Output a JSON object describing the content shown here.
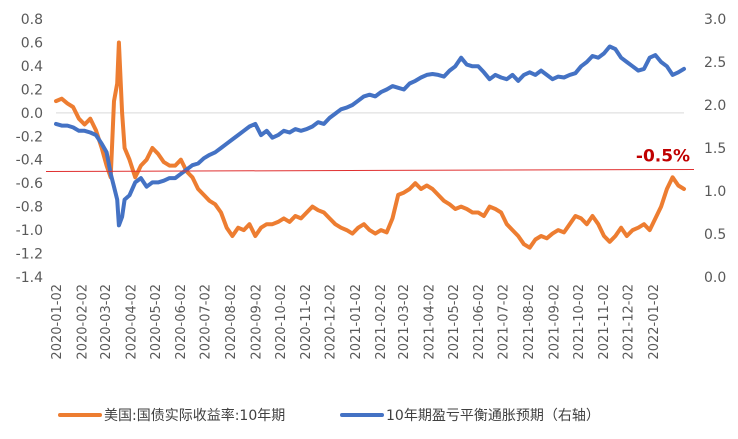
{
  "chart_data": {
    "type": "line",
    "title": "",
    "left_axis": {
      "ylim": [
        -1.4,
        0.8
      ],
      "ticks": [
        "0.8",
        "0.6",
        "0.4",
        "0.2",
        "0.0",
        "-0.2",
        "-0.4",
        "-0.6",
        "-0.8",
        "-1.0",
        "-1.2",
        "-1.4"
      ]
    },
    "right_axis": {
      "ylim": [
        0.0,
        3.0
      ],
      "ticks": [
        "3.0",
        "2.5",
        "2.0",
        "1.5",
        "1.0",
        "0.5",
        "0.0"
      ]
    },
    "x_tick_labels": [
      "2020-01-02",
      "2020-02-02",
      "2020-03-02",
      "2020-04-02",
      "2020-05-02",
      "2020-06-02",
      "2020-07-02",
      "2020-08-02",
      "2020-09-02",
      "2020-10-02",
      "2020-11-02",
      "2020-12-02",
      "2021-01-02",
      "2021-02-02",
      "2021-03-02",
      "2021-04-02",
      "2021-05-02",
      "2021-06-02",
      "2021-07-02",
      "2021-08-02",
      "2021-09-02",
      "2021-10-02",
      "2021-11-02",
      "2021-12-02",
      "2022-01-02"
    ],
    "grid": false,
    "legend_position": "bottom",
    "series": [
      {
        "name": "美国:国债实际收益率:10年期",
        "axis": "left",
        "color": "#ED7D31",
        "points": [
          [
            "2020-01-02",
            0.1
          ],
          [
            "2020-01-09",
            0.12
          ],
          [
            "2020-01-16",
            0.08
          ],
          [
            "2020-01-23",
            0.05
          ],
          [
            "2020-01-30",
            -0.05
          ],
          [
            "2020-02-06",
            -0.1
          ],
          [
            "2020-02-13",
            -0.05
          ],
          [
            "2020-02-20",
            -0.15
          ],
          [
            "2020-02-27",
            -0.3
          ],
          [
            "2020-03-04",
            -0.45
          ],
          [
            "2020-03-09",
            -0.55
          ],
          [
            "2020-03-13",
            0.1
          ],
          [
            "2020-03-17",
            0.25
          ],
          [
            "2020-03-19",
            0.6
          ],
          [
            "2020-03-23",
            0.0
          ],
          [
            "2020-03-26",
            -0.3
          ],
          [
            "2020-04-01",
            -0.4
          ],
          [
            "2020-04-08",
            -0.55
          ],
          [
            "2020-04-15",
            -0.45
          ],
          [
            "2020-04-22",
            -0.4
          ],
          [
            "2020-04-29",
            -0.3
          ],
          [
            "2020-05-06",
            -0.35
          ],
          [
            "2020-05-13",
            -0.42
          ],
          [
            "2020-05-20",
            -0.45
          ],
          [
            "2020-05-27",
            -0.45
          ],
          [
            "2020-06-03",
            -0.4
          ],
          [
            "2020-06-10",
            -0.5
          ],
          [
            "2020-06-17",
            -0.55
          ],
          [
            "2020-06-24",
            -0.65
          ],
          [
            "2020-07-01",
            -0.7
          ],
          [
            "2020-07-08",
            -0.75
          ],
          [
            "2020-07-15",
            -0.78
          ],
          [
            "2020-07-22",
            -0.85
          ],
          [
            "2020-07-29",
            -0.98
          ],
          [
            "2020-08-05",
            -1.05
          ],
          [
            "2020-08-12",
            -0.98
          ],
          [
            "2020-08-19",
            -1.0
          ],
          [
            "2020-08-26",
            -0.95
          ],
          [
            "2020-09-02",
            -1.05
          ],
          [
            "2020-09-09",
            -0.98
          ],
          [
            "2020-09-16",
            -0.95
          ],
          [
            "2020-09-23",
            -0.95
          ],
          [
            "2020-09-30",
            -0.93
          ],
          [
            "2020-10-07",
            -0.9
          ],
          [
            "2020-10-14",
            -0.93
          ],
          [
            "2020-10-21",
            -0.88
          ],
          [
            "2020-10-28",
            -0.9
          ],
          [
            "2020-11-04",
            -0.85
          ],
          [
            "2020-11-11",
            -0.8
          ],
          [
            "2020-11-18",
            -0.83
          ],
          [
            "2020-11-25",
            -0.85
          ],
          [
            "2020-12-02",
            -0.9
          ],
          [
            "2020-12-09",
            -0.95
          ],
          [
            "2020-12-16",
            -0.98
          ],
          [
            "2020-12-23",
            -1.0
          ],
          [
            "2020-12-30",
            -1.03
          ],
          [
            "2021-01-06",
            -0.98
          ],
          [
            "2021-01-13",
            -0.95
          ],
          [
            "2021-01-20",
            -1.0
          ],
          [
            "2021-01-27",
            -1.03
          ],
          [
            "2021-02-03",
            -1.0
          ],
          [
            "2021-02-10",
            -1.02
          ],
          [
            "2021-02-17",
            -0.9
          ],
          [
            "2021-02-24",
            -0.7
          ],
          [
            "2021-03-03",
            -0.68
          ],
          [
            "2021-03-10",
            -0.65
          ],
          [
            "2021-03-17",
            -0.6
          ],
          [
            "2021-03-24",
            -0.65
          ],
          [
            "2021-03-31",
            -0.62
          ],
          [
            "2021-04-07",
            -0.65
          ],
          [
            "2021-04-14",
            -0.7
          ],
          [
            "2021-04-21",
            -0.75
          ],
          [
            "2021-04-28",
            -0.78
          ],
          [
            "2021-05-05",
            -0.82
          ],
          [
            "2021-05-12",
            -0.8
          ],
          [
            "2021-05-19",
            -0.82
          ],
          [
            "2021-05-26",
            -0.85
          ],
          [
            "2021-06-02",
            -0.85
          ],
          [
            "2021-06-09",
            -0.88
          ],
          [
            "2021-06-16",
            -0.8
          ],
          [
            "2021-06-23",
            -0.82
          ],
          [
            "2021-06-30",
            -0.85
          ],
          [
            "2021-07-07",
            -0.95
          ],
          [
            "2021-07-14",
            -1.0
          ],
          [
            "2021-07-21",
            -1.05
          ],
          [
            "2021-07-28",
            -1.12
          ],
          [
            "2021-08-04",
            -1.15
          ],
          [
            "2021-08-11",
            -1.08
          ],
          [
            "2021-08-18",
            -1.05
          ],
          [
            "2021-08-25",
            -1.07
          ],
          [
            "2021-09-01",
            -1.03
          ],
          [
            "2021-09-08",
            -1.0
          ],
          [
            "2021-09-15",
            -1.02
          ],
          [
            "2021-09-22",
            -0.95
          ],
          [
            "2021-09-29",
            -0.88
          ],
          [
            "2021-10-06",
            -0.9
          ],
          [
            "2021-10-13",
            -0.95
          ],
          [
            "2021-10-20",
            -0.88
          ],
          [
            "2021-10-27",
            -0.95
          ],
          [
            "2021-11-03",
            -1.05
          ],
          [
            "2021-11-10",
            -1.1
          ],
          [
            "2021-11-17",
            -1.05
          ],
          [
            "2021-11-24",
            -0.98
          ],
          [
            "2021-12-01",
            -1.05
          ],
          [
            "2021-12-08",
            -1.0
          ],
          [
            "2021-12-15",
            -0.98
          ],
          [
            "2021-12-22",
            -0.95
          ],
          [
            "2021-12-29",
            -1.0
          ],
          [
            "2022-01-05",
            -0.9
          ],
          [
            "2022-01-12",
            -0.8
          ],
          [
            "2022-01-19",
            -0.65
          ],
          [
            "2022-01-26",
            -0.55
          ],
          [
            "2022-02-02",
            -0.62
          ],
          [
            "2022-02-09",
            -0.65
          ]
        ]
      },
      {
        "name": "10年期盈亏平衡通胀预期（右轴）",
        "axis": "right",
        "color": "#4472C4",
        "points": [
          [
            "2020-01-02",
            1.78
          ],
          [
            "2020-01-09",
            1.76
          ],
          [
            "2020-01-16",
            1.76
          ],
          [
            "2020-01-23",
            1.74
          ],
          [
            "2020-01-30",
            1.7
          ],
          [
            "2020-02-06",
            1.7
          ],
          [
            "2020-02-13",
            1.68
          ],
          [
            "2020-02-20",
            1.65
          ],
          [
            "2020-02-27",
            1.55
          ],
          [
            "2020-03-04",
            1.45
          ],
          [
            "2020-03-09",
            1.2
          ],
          [
            "2020-03-13",
            1.05
          ],
          [
            "2020-03-17",
            0.9
          ],
          [
            "2020-03-19",
            0.6
          ],
          [
            "2020-03-23",
            0.7
          ],
          [
            "2020-03-26",
            0.9
          ],
          [
            "2020-04-01",
            0.95
          ],
          [
            "2020-04-08",
            1.1
          ],
          [
            "2020-04-15",
            1.15
          ],
          [
            "2020-04-22",
            1.05
          ],
          [
            "2020-04-29",
            1.1
          ],
          [
            "2020-05-06",
            1.1
          ],
          [
            "2020-05-13",
            1.12
          ],
          [
            "2020-05-20",
            1.15
          ],
          [
            "2020-05-27",
            1.15
          ],
          [
            "2020-06-03",
            1.2
          ],
          [
            "2020-06-10",
            1.25
          ],
          [
            "2020-06-17",
            1.3
          ],
          [
            "2020-06-24",
            1.32
          ],
          [
            "2020-07-01",
            1.38
          ],
          [
            "2020-07-08",
            1.42
          ],
          [
            "2020-07-15",
            1.45
          ],
          [
            "2020-07-22",
            1.5
          ],
          [
            "2020-07-29",
            1.55
          ],
          [
            "2020-08-05",
            1.6
          ],
          [
            "2020-08-12",
            1.65
          ],
          [
            "2020-08-19",
            1.7
          ],
          [
            "2020-08-26",
            1.75
          ],
          [
            "2020-09-02",
            1.78
          ],
          [
            "2020-09-09",
            1.65
          ],
          [
            "2020-09-16",
            1.7
          ],
          [
            "2020-09-23",
            1.62
          ],
          [
            "2020-09-30",
            1.65
          ],
          [
            "2020-10-07",
            1.7
          ],
          [
            "2020-10-14",
            1.68
          ],
          [
            "2020-10-21",
            1.72
          ],
          [
            "2020-10-28",
            1.7
          ],
          [
            "2020-11-04",
            1.72
          ],
          [
            "2020-11-11",
            1.75
          ],
          [
            "2020-11-18",
            1.8
          ],
          [
            "2020-11-25",
            1.78
          ],
          [
            "2020-12-02",
            1.85
          ],
          [
            "2020-12-09",
            1.9
          ],
          [
            "2020-12-16",
            1.95
          ],
          [
            "2020-12-23",
            1.97
          ],
          [
            "2020-12-30",
            2.0
          ],
          [
            "2021-01-06",
            2.05
          ],
          [
            "2021-01-13",
            2.1
          ],
          [
            "2021-01-20",
            2.12
          ],
          [
            "2021-01-27",
            2.1
          ],
          [
            "2021-02-03",
            2.15
          ],
          [
            "2021-02-10",
            2.18
          ],
          [
            "2021-02-17",
            2.22
          ],
          [
            "2021-02-24",
            2.2
          ],
          [
            "2021-03-03",
            2.18
          ],
          [
            "2021-03-10",
            2.25
          ],
          [
            "2021-03-17",
            2.28
          ],
          [
            "2021-03-24",
            2.32
          ],
          [
            "2021-03-31",
            2.35
          ],
          [
            "2021-04-07",
            2.36
          ],
          [
            "2021-04-14",
            2.35
          ],
          [
            "2021-04-21",
            2.33
          ],
          [
            "2021-04-28",
            2.4
          ],
          [
            "2021-05-05",
            2.45
          ],
          [
            "2021-05-12",
            2.55
          ],
          [
            "2021-05-19",
            2.47
          ],
          [
            "2021-05-26",
            2.45
          ],
          [
            "2021-06-02",
            2.45
          ],
          [
            "2021-06-09",
            2.38
          ],
          [
            "2021-06-16",
            2.3
          ],
          [
            "2021-06-23",
            2.35
          ],
          [
            "2021-06-30",
            2.32
          ],
          [
            "2021-07-07",
            2.3
          ],
          [
            "2021-07-14",
            2.35
          ],
          [
            "2021-07-21",
            2.28
          ],
          [
            "2021-07-28",
            2.35
          ],
          [
            "2021-08-04",
            2.38
          ],
          [
            "2021-08-11",
            2.35
          ],
          [
            "2021-08-18",
            2.4
          ],
          [
            "2021-08-25",
            2.35
          ],
          [
            "2021-09-01",
            2.3
          ],
          [
            "2021-09-08",
            2.33
          ],
          [
            "2021-09-15",
            2.32
          ],
          [
            "2021-09-22",
            2.35
          ],
          [
            "2021-09-29",
            2.37
          ],
          [
            "2021-10-06",
            2.45
          ],
          [
            "2021-10-13",
            2.5
          ],
          [
            "2021-10-20",
            2.57
          ],
          [
            "2021-10-27",
            2.55
          ],
          [
            "2021-11-03",
            2.6
          ],
          [
            "2021-11-10",
            2.68
          ],
          [
            "2021-11-17",
            2.65
          ],
          [
            "2021-11-24",
            2.55
          ],
          [
            "2021-12-01",
            2.5
          ],
          [
            "2021-12-08",
            2.45
          ],
          [
            "2021-12-15",
            2.4
          ],
          [
            "2021-12-22",
            2.42
          ],
          [
            "2021-12-29",
            2.55
          ],
          [
            "2022-01-05",
            2.58
          ],
          [
            "2022-01-12",
            2.5
          ],
          [
            "2022-01-19",
            2.45
          ],
          [
            "2022-01-26",
            2.35
          ],
          [
            "2022-02-02",
            2.38
          ],
          [
            "2022-02-09",
            2.42
          ]
        ]
      }
    ],
    "reference_line": {
      "value": -0.5,
      "axis": "left",
      "color": "#E03030",
      "label": "-0.5%",
      "label_color": "#C00000"
    }
  }
}
